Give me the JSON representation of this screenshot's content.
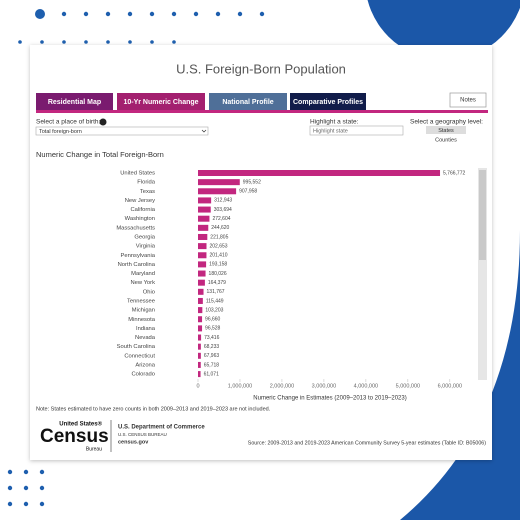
{
  "title": "U.S. Foreign-Born Population",
  "tabs": [
    "Residential Map",
    "10-Yr Numeric Change",
    "National Profile",
    "Comparative Profiles"
  ],
  "notes_button": "Notes",
  "controls": {
    "place_label": "Select a place of birth:",
    "place_value": "Total foreign-born",
    "state_label": "Highlight a state:",
    "state_placeholder": "Highlight state",
    "geo_label": "Select a geography level:",
    "geo_options": [
      "States",
      "Counties"
    ]
  },
  "chart_data": {
    "type": "bar",
    "orientation": "horizontal",
    "title": "Numeric Change in Total Foreign-Born",
    "categories": [
      "United States",
      "Florida",
      "Texas",
      "New Jersey",
      "California",
      "Washington",
      "Massachusetts",
      "Georgia",
      "Virginia",
      "Pennsylvania",
      "North Carolina",
      "Maryland",
      "New York",
      "Ohio",
      "Tennessee",
      "Michigan",
      "Minnesota",
      "Indiana",
      "Nevada",
      "South Carolina",
      "Connecticut",
      "Arizona",
      "Colorado"
    ],
    "values": [
      5766772,
      995552,
      907958,
      312943,
      303694,
      272604,
      244620,
      221805,
      202653,
      201410,
      193158,
      180026,
      164379,
      131767,
      115449,
      103203,
      96660,
      96528,
      73416,
      68233,
      67963,
      65718,
      61071
    ],
    "value_labels": [
      "5,766,772",
      "995,552",
      "907,958",
      "312,943",
      "303,694",
      "272,604",
      "244,620",
      "221,805",
      "202,653",
      "201,410",
      "193,158",
      "180,026",
      "164,379",
      "131,767",
      "115,449",
      "103,203",
      "96,660",
      "96,528",
      "73,416",
      "68,233",
      "67,963",
      "65,718",
      "61,071"
    ],
    "color": "#c2277f",
    "xlim": [
      0,
      6600000
    ],
    "xticks": [
      0,
      {
        "value": 1000000,
        "label": "1,000,000"
      },
      {
        "value": 2000000,
        "label": "2,000,000"
      },
      {
        "value": 3000000,
        "label": "3,000,000"
      },
      {
        "value": 4000000,
        "label": "4,000,000"
      },
      {
        "value": 5000000,
        "label": "5,000,000"
      },
      {
        "value": 6000000,
        "label": "6,000,000"
      }
    ],
    "xlabel": "Numeric Change in Estimates (2009–2013 to 2019–2023)"
  },
  "note": "Note: States estimated to have zero counts in both 2009–2013 and 2019–2023 are not included.",
  "footer": {
    "logo_top": "United States®",
    "logo_main": "Census",
    "logo_sub": "Bureau",
    "dept": "U.S. Department of Commerce",
    "bureau": "U.S. CENSUS BUREAU",
    "site": "census.gov",
    "source": "Source: 2009-2013 and 2019-2023 American Community Survey 5-year estimates (Table ID: B05006)"
  }
}
